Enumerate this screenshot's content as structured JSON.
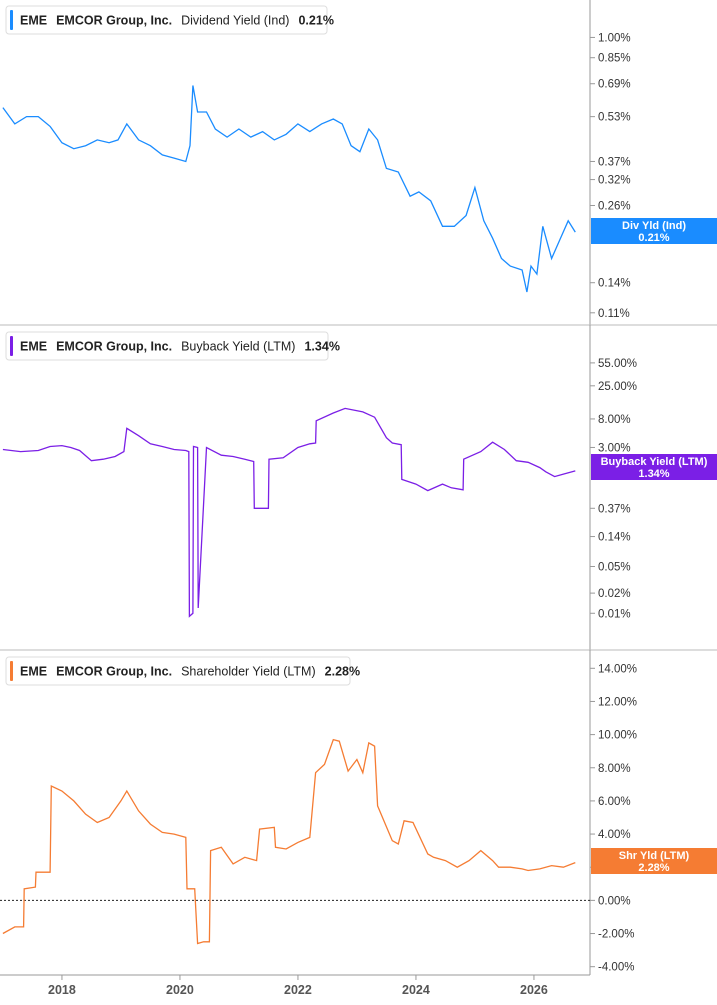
{
  "x_axis": {
    "ticks": [
      "2018",
      "2020",
      "2022",
      "2024",
      "2026"
    ]
  },
  "chart_data": [
    {
      "type": "line",
      "scale": "log",
      "ticker": "EME",
      "company": "EMCOR Group, Inc.",
      "metric": "Dividend Yield (Ind)",
      "last_value": "0.21%",
      "tag_label": "Div Yld (Ind)",
      "color": "#1a8cff",
      "y_ticks": [
        "1.00%",
        "0.85%",
        "0.69%",
        "0.53%",
        "0.37%",
        "0.32%",
        "0.26%",
        "0.14%",
        "0.11%"
      ],
      "y_tick_values": [
        1.0,
        0.85,
        0.69,
        0.53,
        0.37,
        0.32,
        0.26,
        0.14,
        0.11
      ],
      "ylim": [
        0.103,
        1.15
      ],
      "series": [
        {
          "name": "Dividend Yield (Ind)",
          "x": [
            2017.0,
            2017.2,
            2017.4,
            2017.6,
            2017.8,
            2018.0,
            2018.2,
            2018.4,
            2018.6,
            2018.8,
            2018.95,
            2019.1,
            2019.3,
            2019.5,
            2019.7,
            2019.9,
            2020.1,
            2020.17,
            2020.22,
            2020.3,
            2020.45,
            2020.6,
            2020.8,
            2021.0,
            2021.2,
            2021.4,
            2021.6,
            2021.8,
            2022.0,
            2022.2,
            2022.4,
            2022.6,
            2022.75,
            2022.9,
            2023.05,
            2023.2,
            2023.35,
            2023.5,
            2023.7,
            2023.9,
            2024.05,
            2024.25,
            2024.45,
            2024.65,
            2024.85,
            2025.0,
            2025.15,
            2025.3,
            2025.45,
            2025.6,
            2025.8,
            2025.88,
            2025.95,
            2026.05,
            2026.15,
            2026.3,
            2026.45,
            2026.58,
            2026.7
          ],
          "y": [
            0.57,
            0.5,
            0.53,
            0.53,
            0.49,
            0.43,
            0.41,
            0.42,
            0.44,
            0.43,
            0.44,
            0.5,
            0.44,
            0.42,
            0.39,
            0.38,
            0.37,
            0.42,
            0.68,
            0.55,
            0.55,
            0.48,
            0.45,
            0.48,
            0.45,
            0.47,
            0.44,
            0.46,
            0.5,
            0.47,
            0.5,
            0.52,
            0.5,
            0.42,
            0.4,
            0.48,
            0.44,
            0.35,
            0.34,
            0.28,
            0.29,
            0.27,
            0.22,
            0.22,
            0.24,
            0.3,
            0.23,
            0.2,
            0.17,
            0.16,
            0.155,
            0.13,
            0.16,
            0.15,
            0.22,
            0.17,
            0.2,
            0.23,
            0.21
          ]
        }
      ]
    },
    {
      "type": "line",
      "scale": "log",
      "ticker": "EME",
      "company": "EMCOR Group, Inc.",
      "metric": "Buyback Yield (LTM)",
      "last_value": "1.34%",
      "tag_label": "Buyback Yield (LTM)",
      "color": "#7b1fe6",
      "y_ticks": [
        "55.00%",
        "25.00%",
        "8.00%",
        "3.00%",
        "0.37%",
        "0.14%",
        "0.05%",
        "0.02%",
        "0.01%"
      ],
      "y_tick_values": [
        55,
        25,
        8,
        3,
        0.37,
        0.14,
        0.05,
        0.02,
        0.01
      ],
      "ylim": [
        0.0085,
        80
      ],
      "series": [
        {
          "name": "Buyback Yield (LTM)",
          "x": [
            2017.0,
            2017.3,
            2017.6,
            2017.8,
            2018.0,
            2018.15,
            2018.3,
            2018.5,
            2018.7,
            2018.9,
            2019.05,
            2019.1,
            2019.3,
            2019.5,
            2019.7,
            2019.9,
            2020.1,
            2020.15,
            2020.16,
            2020.22,
            2020.23,
            2020.3,
            2020.31,
            2020.45,
            2020.7,
            2020.9,
            2021.1,
            2021.25,
            2021.26,
            2021.5,
            2021.51,
            2021.75,
            2022.0,
            2022.2,
            2022.3,
            2022.31,
            2022.6,
            2022.8,
            2023.1,
            2023.3,
            2023.5,
            2023.6,
            2023.75,
            2023.76,
            2024.0,
            2024.2,
            2024.45,
            2024.6,
            2024.8,
            2024.81,
            2025.1,
            2025.3,
            2025.5,
            2025.7,
            2025.9,
            2026.1,
            2026.2,
            2026.35,
            2026.5,
            2026.7
          ],
          "y": [
            2.8,
            2.6,
            2.7,
            3.1,
            3.2,
            3.0,
            2.7,
            1.9,
            2.0,
            2.2,
            2.6,
            5.8,
            4.5,
            3.4,
            3.1,
            2.8,
            2.7,
            2.6,
            0.009,
            0.01,
            3.1,
            3.0,
            0.012,
            3.0,
            2.3,
            2.2,
            2.0,
            1.85,
            0.37,
            0.37,
            2.0,
            2.1,
            3.0,
            3.4,
            3.5,
            7.5,
            9.8,
            11.5,
            10.2,
            8.5,
            4.2,
            3.5,
            3.3,
            1.0,
            0.85,
            0.68,
            0.85,
            0.75,
            0.7,
            2.0,
            2.6,
            3.6,
            2.8,
            1.9,
            1.8,
            1.5,
            1.3,
            1.1,
            1.2,
            1.34
          ]
        }
      ]
    },
    {
      "type": "line",
      "scale": "linear",
      "ticker": "EME",
      "company": "EMCOR Group, Inc.",
      "metric": "Shareholder Yield (LTM)",
      "last_value": "2.28%",
      "tag_label": "Shr Yld (LTM)",
      "color": "#f57c33",
      "y_ticks": [
        "14.00%",
        "12.00%",
        "10.00%",
        "8.00%",
        "6.00%",
        "4.00%",
        "2.00%",
        "0.00%",
        "-2.00%",
        "-4.00%"
      ],
      "y_tick_values": [
        14,
        12,
        10,
        8,
        6,
        4,
        2,
        0,
        -2,
        -4
      ],
      "ylim": [
        -4.2,
        14.5
      ],
      "zero_line": true,
      "series": [
        {
          "name": "Shareholder Yield (LTM)",
          "x": [
            2017.0,
            2017.2,
            2017.35,
            2017.36,
            2017.55,
            2017.56,
            2017.8,
            2017.82,
            2018.0,
            2018.2,
            2018.4,
            2018.6,
            2018.8,
            2019.0,
            2019.1,
            2019.3,
            2019.5,
            2019.7,
            2019.9,
            2020.1,
            2020.12,
            2020.25,
            2020.3,
            2020.4,
            2020.5,
            2020.52,
            2020.7,
            2020.9,
            2021.1,
            2021.3,
            2021.35,
            2021.6,
            2021.62,
            2021.8,
            2022.0,
            2022.2,
            2022.3,
            2022.45,
            2022.6,
            2022.7,
            2022.85,
            2023.0,
            2023.1,
            2023.2,
            2023.3,
            2023.35,
            2023.6,
            2023.7,
            2023.8,
            2023.95,
            2024.2,
            2024.3,
            2024.5,
            2024.7,
            2024.9,
            2025.1,
            2025.3,
            2025.4,
            2025.6,
            2025.8,
            2025.9,
            2026.1,
            2026.3,
            2026.5,
            2026.7
          ],
          "y": [
            -2.0,
            -1.6,
            -1.6,
            0.7,
            0.8,
            1.7,
            1.7,
            6.9,
            6.6,
            6.0,
            5.2,
            4.7,
            5.0,
            6.0,
            6.6,
            5.4,
            4.6,
            4.1,
            4.0,
            3.8,
            0.7,
            0.7,
            -2.6,
            -2.5,
            -2.5,
            3.0,
            3.2,
            2.2,
            2.6,
            2.4,
            4.3,
            4.4,
            3.2,
            3.1,
            3.5,
            3.8,
            7.7,
            8.2,
            9.7,
            9.6,
            7.8,
            8.5,
            7.7,
            9.5,
            9.3,
            5.7,
            3.6,
            3.4,
            4.8,
            4.7,
            2.8,
            2.6,
            2.4,
            2.0,
            2.4,
            3.0,
            2.4,
            2.0,
            2.0,
            1.9,
            1.8,
            1.9,
            2.1,
            2.0,
            2.28
          ]
        }
      ]
    }
  ]
}
